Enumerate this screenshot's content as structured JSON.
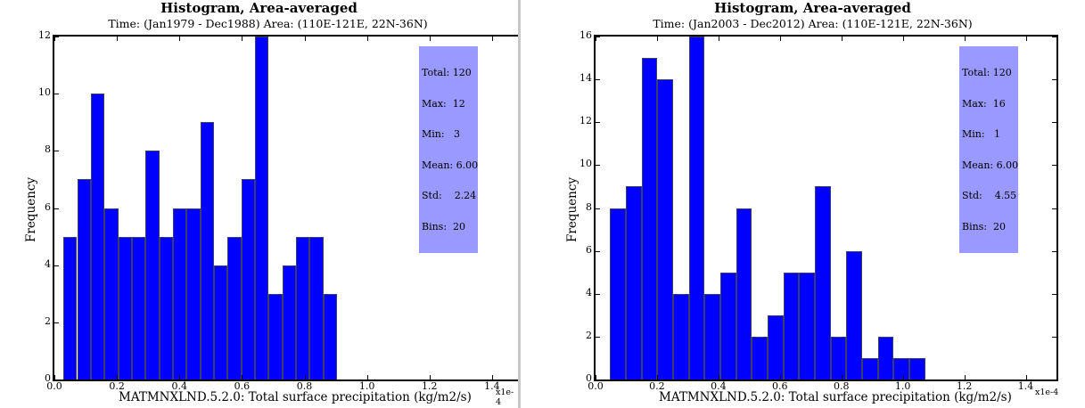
{
  "charts": [
    {
      "title": "Histogram, Area-averaged",
      "subtitle": "Time: (Jan1979 - Dec1988)    Area: (110E-121E, 22N-36N)",
      "ylabel": "Frequency",
      "xlabel": "MATMNXLND.5.2.0: Total surface precipitation  (kg/m2/s)",
      "x_multiplier": "x1e-4",
      "y_ticks": [
        "0",
        "2",
        "4",
        "6",
        "8",
        "10",
        "12"
      ],
      "x_ticks": [
        "0.0",
        "0.2",
        "0.4",
        "0.6",
        "0.8",
        "1.0",
        "1.2",
        "1.4"
      ],
      "stats": {
        "total": "Total: 120",
        "max": "Max:  12",
        "min": "Min:   3",
        "mean": "Mean: 6.00",
        "std": "Std:    2.24",
        "bins": "Bins:  20"
      }
    },
    {
      "title": "Histogram, Area-averaged",
      "subtitle": "Time: (Jan2003 - Dec2012)    Area: (110E-121E, 22N-36N)",
      "ylabel": "Frequency",
      "xlabel": "MATMNXLND.5.2.0: Total surface precipitation  (kg/m2/s)",
      "x_multiplier": "x1e-4",
      "y_ticks": [
        "0",
        "2",
        "4",
        "6",
        "8",
        "10",
        "12",
        "14",
        "16"
      ],
      "x_ticks": [
        "0.0",
        "0.2",
        "0.4",
        "0.6",
        "0.8",
        "1.0",
        "1.2",
        "1.4"
      ],
      "stats": {
        "total": "Total: 120",
        "max": "Max:  16",
        "min": "Min:   1",
        "mean": "Mean: 6.00",
        "std": "Std:    4.55",
        "bins": "Bins:  20"
      }
    }
  ],
  "chart_data": [
    {
      "type": "bar",
      "title": "Histogram, Area-averaged",
      "subtitle": "Time: (Jan1979 - Dec1988)    Area: (110E-121E, 22N-36N)",
      "xlabel": "MATMNXLND.5.2.0: Total surface precipitation  (kg/m2/s)",
      "ylabel": "Frequency",
      "x_scale": "x1e-4",
      "xlim": [
        0.0,
        1.5
      ],
      "ylim": [
        0,
        12
      ],
      "bin_range": [
        0.029,
        0.904
      ],
      "bins": 20,
      "values": [
        5,
        7,
        10,
        6,
        5,
        5,
        8,
        5,
        6,
        6,
        9,
        4,
        5,
        7,
        12,
        3,
        4,
        5,
        5,
        3
      ],
      "color": "#0000ff",
      "grid": false,
      "stats": {
        "total": 120,
        "max": 12,
        "min": 3,
        "mean": 6.0,
        "std": 2.24,
        "bins": 20
      }
    },
    {
      "type": "bar",
      "title": "Histogram, Area-averaged",
      "subtitle": "Time: (Jan2003 - Dec2012)    Area: (110E-121E, 22N-36N)",
      "xlabel": "MATMNXLND.5.2.0: Total surface precipitation  (kg/m2/s)",
      "ylabel": "Frequency",
      "x_scale": "x1e-4",
      "xlim": [
        0.0,
        1.5
      ],
      "ylim": [
        0,
        16
      ],
      "bin_range": [
        0.047,
        1.073
      ],
      "bins": 20,
      "values": [
        8,
        9,
        15,
        14,
        4,
        16,
        4,
        5,
        8,
        2,
        3,
        5,
        5,
        9,
        2,
        6,
        1,
        2,
        1,
        1
      ],
      "color": "#0000ff",
      "grid": false,
      "stats": {
        "total": 120,
        "max": 16,
        "min": 1,
        "mean": 6.0,
        "std": 4.55,
        "bins": 20
      }
    }
  ]
}
